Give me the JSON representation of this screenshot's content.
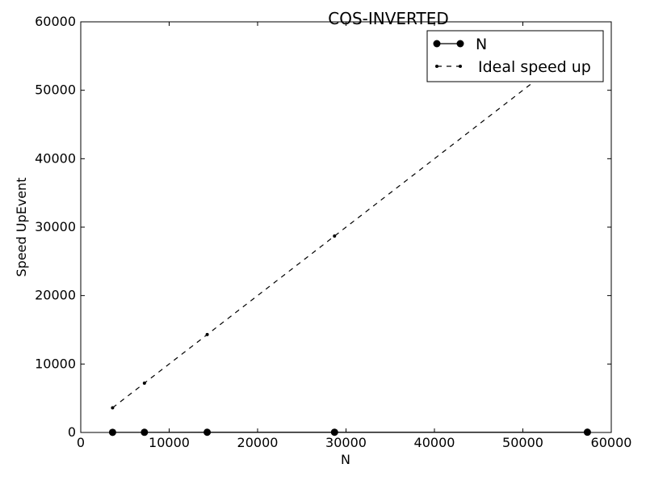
{
  "chart_data": {
    "type": "line",
    "title": "COS-INVERTED",
    "xlabel": "N",
    "ylabel": "Speed UpEvent",
    "xlim": [
      0,
      60000
    ],
    "ylim": [
      0,
      60000
    ],
    "xticks": [
      0,
      10000,
      20000,
      30000,
      40000,
      50000,
      60000
    ],
    "yticks": [
      0,
      10000,
      20000,
      30000,
      40000,
      50000,
      60000
    ],
    "grid": false,
    "legend_position": "top-right",
    "series": [
      {
        "name": "N",
        "style": "solid",
        "marker": "circle",
        "color": "#000000",
        "x": [
          3600,
          7200,
          14300,
          28700,
          57300
        ],
        "y": [
          20,
          25,
          30,
          35,
          40
        ]
      },
      {
        "name": "Ideal speed up",
        "style": "dashed",
        "marker": "point",
        "color": "#000000",
        "x": [
          3600,
          7200,
          14300,
          28700,
          57300
        ],
        "y": [
          3600,
          7200,
          14300,
          28700,
          57300
        ]
      }
    ]
  }
}
